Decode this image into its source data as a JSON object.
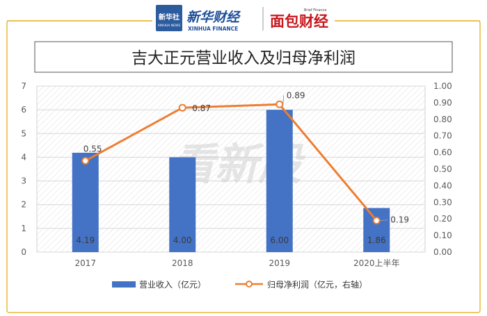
{
  "header": {
    "logo_badge": "新华社",
    "logo_badge_sub": "XINHUA NEWS",
    "brand_cn": "新华财经",
    "brand_en": "XINHUA FINANCE",
    "partner_small": "Brief Finance",
    "partner_logo": "面包财经"
  },
  "watermark": "看新股",
  "colors": {
    "bar": "#4472C4",
    "line": "#ED7D31",
    "border_gold": "#E8B83B",
    "bar_label": "#3A3A3A"
  },
  "chart_data": {
    "type": "bar",
    "title": "吉大正元营业收入及归母净利润",
    "categories": [
      "2017",
      "2018",
      "2019",
      "2020上半年"
    ],
    "series": [
      {
        "name": "营业收入（亿元）",
        "type": "bar",
        "axis": "left",
        "values": [
          4.19,
          4.0,
          6.0,
          1.86
        ],
        "labels": [
          "4.19",
          "4.00",
          "6.00",
          "1.86"
        ]
      },
      {
        "name": "归母净利润（亿元，右轴）",
        "type": "line",
        "axis": "right",
        "values": [
          0.55,
          0.87,
          0.89,
          0.19
        ],
        "labels": [
          "0.55",
          "0.87",
          "0.89",
          "0.19"
        ]
      }
    ],
    "y_left": {
      "min": 0,
      "max": 7,
      "ticks": [
        "0",
        "1",
        "2",
        "3",
        "4",
        "5",
        "6",
        "7"
      ]
    },
    "y_right": {
      "min": 0,
      "max": 1.0,
      "ticks": [
        "0.00",
        "0.10",
        "0.20",
        "0.30",
        "0.40",
        "0.50",
        "0.60",
        "0.70",
        "0.80",
        "0.90",
        "1.00"
      ]
    },
    "grid": true,
    "legend_position": "bottom"
  }
}
